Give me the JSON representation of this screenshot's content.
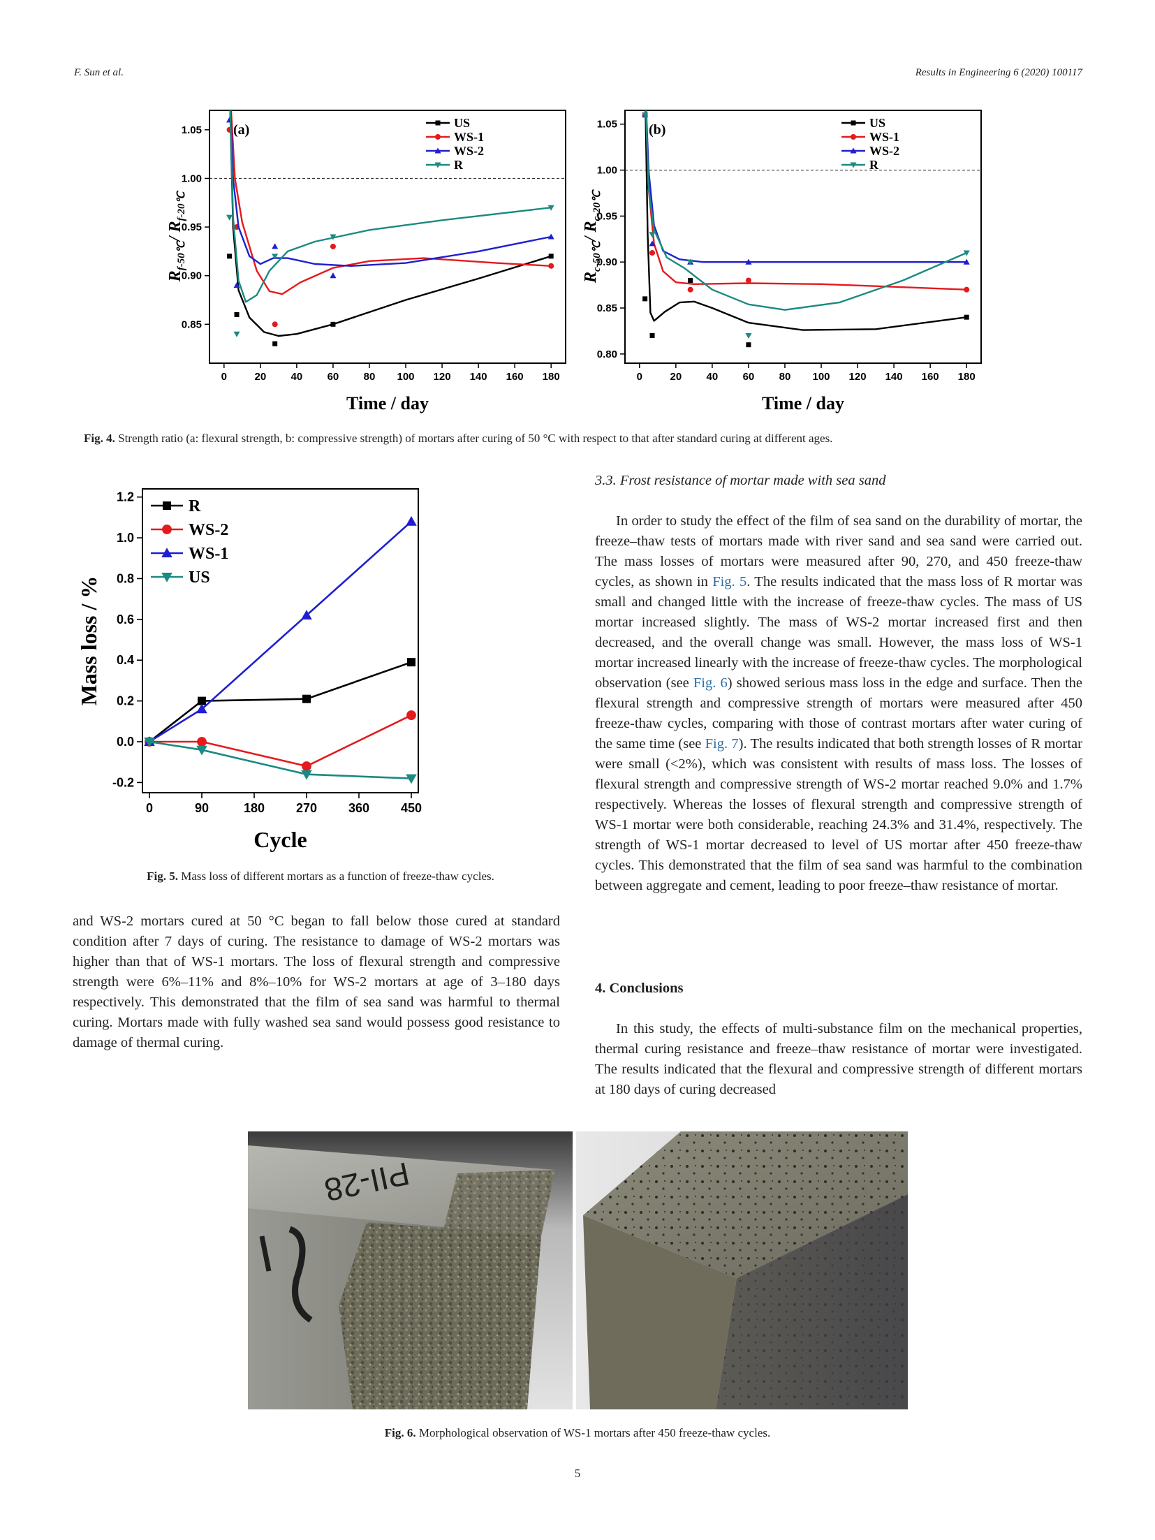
{
  "header": {
    "left": "F. Sun et al.",
    "right": "Results in Engineering 6 (2020) 100117"
  },
  "fig4": {
    "caption_label": "Fig. 4.",
    "caption_text": "Strength ratio (a: flexural strength, b: compressive strength) of mortars after curing of 50 °C with respect to that after standard curing at different ages."
  },
  "chart_data": [
    {
      "type": "scatter",
      "panel": "(a)",
      "xlabel": "Time / day",
      "ylabel_main_num": "R",
      "ylabel_sub_num": "f-50℃",
      "ylabel_main_den": "R",
      "ylabel_sub_den": "f-20℃",
      "xlim": [
        -8,
        188
      ],
      "ylim": [
        0.81,
        1.07
      ],
      "xticks": [
        0,
        20,
        40,
        60,
        80,
        100,
        120,
        140,
        160,
        180
      ],
      "yticks": [
        0.85,
        0.9,
        0.95,
        1.0,
        1.05
      ],
      "reference_line_y": 1.0,
      "legend_position": "top-right",
      "series": [
        {
          "name": "US",
          "color": "#000000",
          "marker": "square",
          "x": [
            3,
            7,
            28,
            60,
            180
          ],
          "y": [
            0.92,
            0.86,
            0.83,
            0.85,
            0.92
          ],
          "fit": [
            [
              3,
              1.1
            ],
            [
              5,
              0.95
            ],
            [
              8,
              0.885
            ],
            [
              14,
              0.857
            ],
            [
              22,
              0.842
            ],
            [
              30,
              0.838
            ],
            [
              40,
              0.84
            ],
            [
              60,
              0.85
            ],
            [
              100,
              0.875
            ],
            [
              140,
              0.897
            ],
            [
              180,
              0.92
            ]
          ]
        },
        {
          "name": "WS-1",
          "color": "#e41a1c",
          "marker": "circle",
          "x": [
            3,
            7,
            28,
            60,
            180
          ],
          "y": [
            1.05,
            0.95,
            0.85,
            0.93,
            0.91
          ],
          "fit": [
            [
              3,
              1.1
            ],
            [
              6,
              1.0
            ],
            [
              10,
              0.955
            ],
            [
              18,
              0.905
            ],
            [
              25,
              0.884
            ],
            [
              32,
              0.881
            ],
            [
              42,
              0.893
            ],
            [
              60,
              0.908
            ],
            [
              80,
              0.915
            ],
            [
              110,
              0.918
            ],
            [
              150,
              0.913
            ],
            [
              180,
              0.91
            ]
          ]
        },
        {
          "name": "WS-2",
          "color": "#1f1fd0",
          "marker": "triangle-up",
          "x": [
            3,
            7,
            28,
            60,
            180
          ],
          "y": [
            1.06,
            0.89,
            0.93,
            0.9,
            0.94
          ],
          "fit": [
            [
              3,
              1.1
            ],
            [
              5,
              1.0
            ],
            [
              8,
              0.95
            ],
            [
              14,
              0.92
            ],
            [
              20,
              0.912
            ],
            [
              27,
              0.918
            ],
            [
              35,
              0.918
            ],
            [
              50,
              0.912
            ],
            [
              70,
              0.91
            ],
            [
              100,
              0.913
            ],
            [
              140,
              0.925
            ],
            [
              180,
              0.94
            ]
          ]
        },
        {
          "name": "R",
          "color": "#1b8a80",
          "marker": "triangle-down",
          "x": [
            3,
            7,
            28,
            60,
            180
          ],
          "y": [
            0.96,
            0.84,
            0.92,
            0.94,
            0.97
          ],
          "fit": [
            [
              3,
              1.1
            ],
            [
              5,
              0.96
            ],
            [
              8,
              0.895
            ],
            [
              12,
              0.873
            ],
            [
              18,
              0.88
            ],
            [
              25,
              0.905
            ],
            [
              35,
              0.925
            ],
            [
              50,
              0.935
            ],
            [
              80,
              0.947
            ],
            [
              120,
              0.957
            ],
            [
              180,
              0.97
            ]
          ]
        }
      ]
    },
    {
      "type": "scatter",
      "panel": "(b)",
      "xlabel": "Time / day",
      "ylabel_main_num": "R",
      "ylabel_sub_num": "c-50℃",
      "ylabel_main_den": "R",
      "ylabel_sub_den": "c-20℃",
      "xlim": [
        -8,
        188
      ],
      "ylim": [
        0.79,
        1.065
      ],
      "xticks": [
        0,
        20,
        40,
        60,
        80,
        100,
        120,
        140,
        160,
        180
      ],
      "yticks": [
        0.8,
        0.85,
        0.9,
        0.95,
        1.0,
        1.05
      ],
      "reference_line_y": 1.0,
      "legend_position": "top-right",
      "series": [
        {
          "name": "US",
          "color": "#000000",
          "marker": "square",
          "x": [
            3,
            7,
            28,
            60,
            180
          ],
          "y": [
            0.86,
            0.82,
            0.88,
            0.81,
            0.84
          ],
          "fit": [
            [
              3,
              1.1
            ],
            [
              4.5,
              0.93
            ],
            [
              6,
              0.845
            ],
            [
              8,
              0.836
            ],
            [
              14,
              0.846
            ],
            [
              22,
              0.856
            ],
            [
              30,
              0.857
            ],
            [
              40,
              0.85
            ],
            [
              60,
              0.834
            ],
            [
              90,
              0.826
            ],
            [
              130,
              0.827
            ],
            [
              180,
              0.84
            ]
          ]
        },
        {
          "name": "WS-1",
          "color": "#e41a1c",
          "marker": "circle",
          "x": [
            3,
            7,
            28,
            60,
            180
          ],
          "y": [
            1.06,
            0.91,
            0.87,
            0.88,
            0.87
          ],
          "fit": [
            [
              3,
              1.1
            ],
            [
              5,
              0.98
            ],
            [
              8,
              0.92
            ],
            [
              13,
              0.89
            ],
            [
              20,
              0.878
            ],
            [
              30,
              0.876
            ],
            [
              60,
              0.877
            ],
            [
              100,
              0.876
            ],
            [
              140,
              0.873
            ],
            [
              180,
              0.87
            ]
          ]
        },
        {
          "name": "WS-2",
          "color": "#1f1fd0",
          "marker": "triangle-up",
          "x": [
            3,
            7,
            28,
            60,
            180
          ],
          "y": [
            1.06,
            0.92,
            0.9,
            0.9,
            0.9
          ],
          "fit": [
            [
              3,
              1.1
            ],
            [
              5,
              1.0
            ],
            [
              8,
              0.94
            ],
            [
              13,
              0.912
            ],
            [
              22,
              0.903
            ],
            [
              35,
              0.9
            ],
            [
              60,
              0.9
            ],
            [
              180,
              0.9
            ]
          ]
        },
        {
          "name": "R",
          "color": "#1b8a80",
          "marker": "triangle-down",
          "x": [
            3,
            7,
            28,
            60,
            180
          ],
          "y": [
            1.06,
            0.93,
            0.9,
            0.82,
            0.91
          ],
          "fit": [
            [
              3,
              1.1
            ],
            [
              5,
              0.98
            ],
            [
              8,
              0.935
            ],
            [
              15,
              0.905
            ],
            [
              25,
              0.893
            ],
            [
              40,
              0.87
            ],
            [
              60,
              0.854
            ],
            [
              80,
              0.848
            ],
            [
              110,
              0.856
            ],
            [
              145,
              0.88
            ],
            [
              180,
              0.91
            ]
          ]
        }
      ]
    },
    {
      "type": "line",
      "xlabel": "Cycle",
      "ylabel": "Mass loss / %",
      "xlim": [
        -12,
        462
      ],
      "ylim": [
        -0.25,
        1.24
      ],
      "xticks": [
        0,
        90,
        180,
        270,
        360,
        450
      ],
      "yticks": [
        -0.2,
        0.0,
        0.2,
        0.4,
        0.6,
        0.8,
        1.0,
        1.2
      ],
      "legend_position": "top-left",
      "x": [
        0,
        90,
        270,
        450
      ],
      "series": [
        {
          "name": "R",
          "color": "#000000",
          "marker": "square",
          "values": [
            0.0,
            0.2,
            0.21,
            0.39
          ]
        },
        {
          "name": "WS-2",
          "color": "#e41a1c",
          "marker": "circle",
          "values": [
            0.0,
            0.0,
            -0.12,
            0.13
          ]
        },
        {
          "name": "WS-1",
          "color": "#1f1fd0",
          "marker": "triangle-up",
          "values": [
            0.0,
            0.16,
            0.62,
            1.08
          ]
        },
        {
          "name": "US",
          "color": "#1b8a80",
          "marker": "triangle-down",
          "values": [
            0.0,
            -0.04,
            -0.16,
            -0.18
          ]
        }
      ]
    }
  ],
  "fig5": {
    "caption_label": "Fig. 5.",
    "caption_text": "Mass loss of different mortars as a function of freeze-thaw cycles."
  },
  "left_column": {
    "paragraph": "and WS-2 mortars cured at 50 °C began to fall below those cured at standard condition after 7 days of curing. The resistance to damage of WS-2 mortars was higher than that of WS-1 mortars. The loss of flexural strength and compressive strength were 6%–11% and 8%–10% for WS-2 mortars at age of 3–180 days respectively. This demonstrated that the film of sea sand was harmful to thermal curing. Mortars made with fully washed sea sand would possess good resistance to damage of thermal curing."
  },
  "section_3_3": {
    "heading": "3.3.  Frost resistance of mortar made with sea sand",
    "p1_a": "In order to study the effect of the film of sea sand on the durability of mortar, the freeze–thaw tests of mortars made with river sand and sea sand were carried out. The mass losses of mortars were measured after 90, 270, and 450 freeze-thaw cycles, as shown in ",
    "link_fig5": "Fig. 5",
    "p1_b": ". The results indicated that the mass loss of R mortar was small and changed little with the increase of freeze-thaw cycles. The mass of US mortar increased slightly. The mass of WS-2 mortar increased first and then decreased, and the overall change was small. However, the mass loss of WS-1 mortar increased linearly with the increase of freeze-thaw cycles. The morphological observation (see ",
    "link_fig6": "Fig. 6",
    "p1_c": ") showed serious mass loss in the edge and surface. Then the flexural strength and compressive strength of mortars were measured after 450 freeze-thaw cycles, comparing with those of contrast mortars after water curing of the same time (see ",
    "link_fig7": "Fig. 7",
    "p1_d": "). The results indicated that both strength losses of R mortar were small (<2%), which was consistent with results of mass loss. The losses of flexural strength and compressive strength of WS-2 mortar reached 9.0% and 1.7% respectively. Whereas the losses of flexural strength and compressive strength of WS-1 mortar were both considerable, reaching 24.3% and 31.4%, respectively. The strength of WS-1 mortar decreased to level of US mortar after 450 freeze-thaw cycles. This demonstrated that the film of sea sand was harmful to the combination between aggregate and cement, leading to poor freeze–thaw resistance of mortar."
  },
  "section_4": {
    "heading": "4.  Conclusions",
    "p1": "In this study, the effects of multi-substance film on the mechanical properties, thermal curing resistance and freeze–thaw resistance of mortar were investigated. The results indicated that the flexural and compressive strength of different mortars at 180 days of curing decreased"
  },
  "fig6": {
    "photo_text": "PII-28",
    "caption_label": "Fig. 6.",
    "caption_text": "Morphological observation of WS-1 mortars after 450 freeze-thaw cycles."
  },
  "page_number": "5"
}
